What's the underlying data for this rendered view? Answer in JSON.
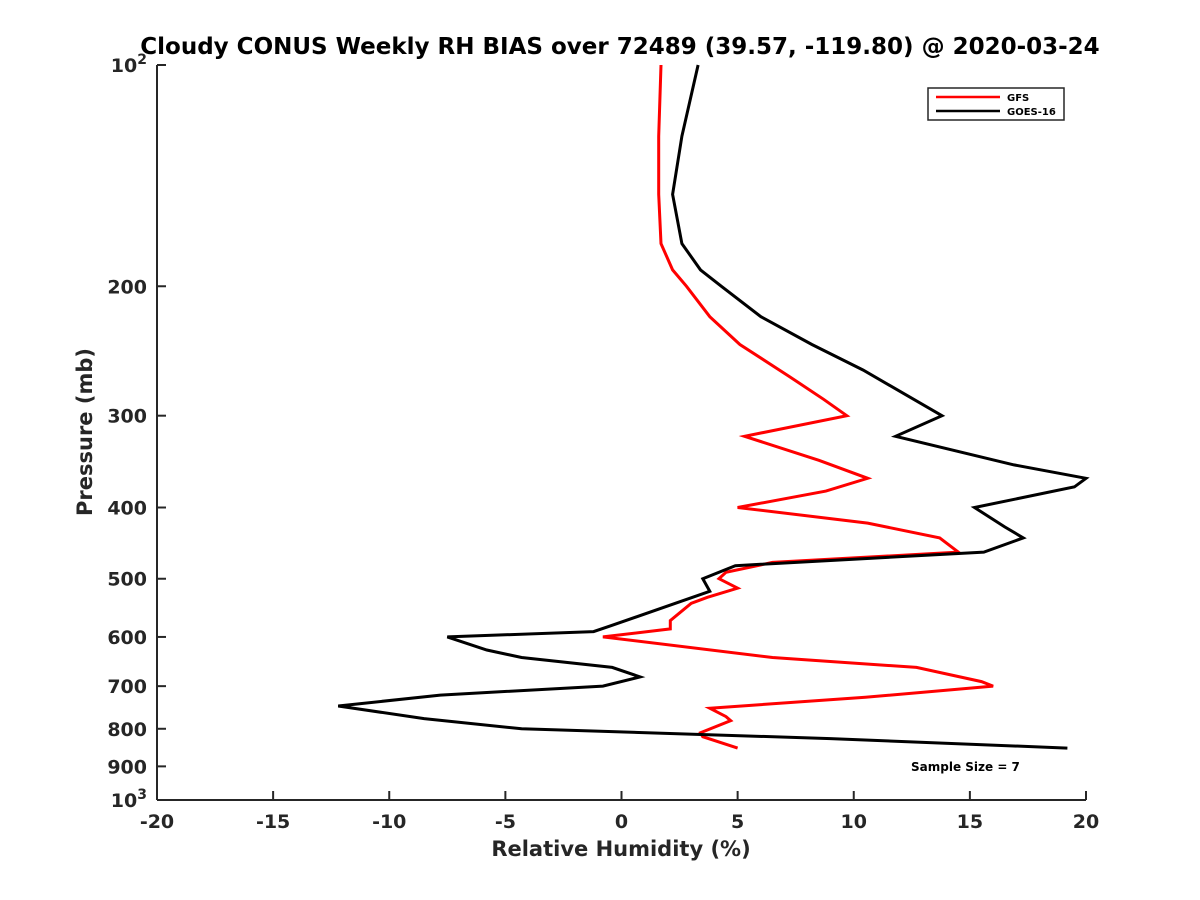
{
  "chart_data": {
    "type": "line",
    "title": "Cloudy CONUS Weekly RH BIAS over 72489 (39.57, -119.80) @ 2020-03-24",
    "xlabel": "Relative Humidity (%)",
    "ylabel": "Pressure (mb)",
    "xlim": [
      -20,
      20
    ],
    "ylim": [
      100,
      1000
    ],
    "y_scale": "log",
    "y_reversed": true,
    "grid": false,
    "legend_position": "top-right",
    "x_ticks": [
      {
        "value": -20,
        "label": "-20"
      },
      {
        "value": -15,
        "label": "-15"
      },
      {
        "value": -10,
        "label": "-10"
      },
      {
        "value": -5,
        "label": "-5"
      },
      {
        "value": 0,
        "label": "0"
      },
      {
        "value": 5,
        "label": "5"
      },
      {
        "value": 10,
        "label": "10"
      },
      {
        "value": 15,
        "label": "15"
      },
      {
        "value": 20,
        "label": "20"
      }
    ],
    "y_ticks": [
      {
        "value": 100,
        "label": "10",
        "sup": "2"
      },
      {
        "value": 200,
        "label": "200"
      },
      {
        "value": 300,
        "label": "300"
      },
      {
        "value": 400,
        "label": "400"
      },
      {
        "value": 500,
        "label": "500"
      },
      {
        "value": 600,
        "label": "600"
      },
      {
        "value": 700,
        "label": "700"
      },
      {
        "value": 800,
        "label": "800"
      },
      {
        "value": 900,
        "label": "900"
      },
      {
        "value": 1000,
        "label": "10",
        "sup": "3"
      }
    ],
    "series": [
      {
        "name": "GFS",
        "color": "#ff0000",
        "points": [
          {
            "x": 1.7,
            "y": 100
          },
          {
            "x": 1.6,
            "y": 125
          },
          {
            "x": 1.6,
            "y": 150
          },
          {
            "x": 1.7,
            "y": 175
          },
          {
            "x": 2.2,
            "y": 190
          },
          {
            "x": 2.8,
            "y": 200
          },
          {
            "x": 3.8,
            "y": 220
          },
          {
            "x": 5.1,
            "y": 240
          },
          {
            "x": 7.2,
            "y": 265
          },
          {
            "x": 8.7,
            "y": 285
          },
          {
            "x": 9.7,
            "y": 300
          },
          {
            "x": 5.3,
            "y": 320
          },
          {
            "x": 8.5,
            "y": 345
          },
          {
            "x": 10.6,
            "y": 365
          },
          {
            "x": 8.8,
            "y": 380
          },
          {
            "x": 5.0,
            "y": 400
          },
          {
            "x": 10.6,
            "y": 420
          },
          {
            "x": 13.7,
            "y": 440
          },
          {
            "x": 14.5,
            "y": 460
          },
          {
            "x": 6.5,
            "y": 475
          },
          {
            "x": 4.5,
            "y": 490
          },
          {
            "x": 4.2,
            "y": 500
          },
          {
            "x": 5.0,
            "y": 515
          },
          {
            "x": 3.7,
            "y": 530
          },
          {
            "x": 3.0,
            "y": 540
          },
          {
            "x": 2.1,
            "y": 570
          },
          {
            "x": 2.1,
            "y": 585
          },
          {
            "x": -0.8,
            "y": 600
          },
          {
            "x": 6.5,
            "y": 640
          },
          {
            "x": 12.7,
            "y": 660
          },
          {
            "x": 15.5,
            "y": 690
          },
          {
            "x": 16.0,
            "y": 700
          },
          {
            "x": 10.5,
            "y": 725
          },
          {
            "x": 3.8,
            "y": 750
          },
          {
            "x": 4.5,
            "y": 770
          },
          {
            "x": 4.7,
            "y": 780
          },
          {
            "x": 3.4,
            "y": 810
          },
          {
            "x": 3.5,
            "y": 820
          },
          {
            "x": 5.0,
            "y": 850
          }
        ]
      },
      {
        "name": "GOES-16",
        "color": "#000000",
        "points": [
          {
            "x": 3.3,
            "y": 100
          },
          {
            "x": 2.6,
            "y": 125
          },
          {
            "x": 2.2,
            "y": 150
          },
          {
            "x": 2.6,
            "y": 175
          },
          {
            "x": 3.4,
            "y": 190
          },
          {
            "x": 4.3,
            "y": 200
          },
          {
            "x": 6.0,
            "y": 220
          },
          {
            "x": 8.2,
            "y": 240
          },
          {
            "x": 10.4,
            "y": 260
          },
          {
            "x": 13.8,
            "y": 300
          },
          {
            "x": 11.8,
            "y": 320
          },
          {
            "x": 16.9,
            "y": 350
          },
          {
            "x": 20.0,
            "y": 365
          },
          {
            "x": 19.5,
            "y": 375
          },
          {
            "x": 15.2,
            "y": 400
          },
          {
            "x": 16.5,
            "y": 425
          },
          {
            "x": 17.3,
            "y": 440
          },
          {
            "x": 15.6,
            "y": 460
          },
          {
            "x": 4.9,
            "y": 480
          },
          {
            "x": 3.5,
            "y": 500
          },
          {
            "x": 3.8,
            "y": 520
          },
          {
            "x": -0.5,
            "y": 580
          },
          {
            "x": -1.2,
            "y": 590
          },
          {
            "x": -7.5,
            "y": 600
          },
          {
            "x": -5.8,
            "y": 625
          },
          {
            "x": -4.3,
            "y": 640
          },
          {
            "x": -0.4,
            "y": 660
          },
          {
            "x": 0.8,
            "y": 680
          },
          {
            "x": -0.8,
            "y": 700
          },
          {
            "x": -7.8,
            "y": 720
          },
          {
            "x": -12.2,
            "y": 745
          },
          {
            "x": -8.5,
            "y": 775
          },
          {
            "x": -4.3,
            "y": 800
          },
          {
            "x": 9.0,
            "y": 825
          },
          {
            "x": 19.2,
            "y": 850
          }
        ]
      }
    ],
    "annotations": [
      {
        "text": "Sample Size = 7"
      }
    ]
  }
}
